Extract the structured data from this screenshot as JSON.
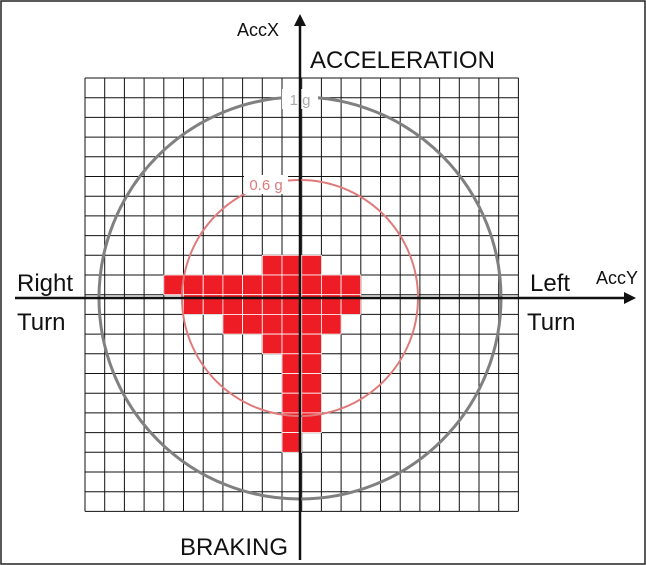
{
  "axes": {
    "x_axis": "AccX",
    "y_axis": "AccY"
  },
  "labels": {
    "top": "ACCELERATION",
    "bottom": "BRAKING",
    "left_1": "Right",
    "left_2": "Turn",
    "right_1": "Left",
    "right_2": "Turn"
  },
  "circles": {
    "outer": "1 g",
    "inner": "0.6 g"
  }
}
